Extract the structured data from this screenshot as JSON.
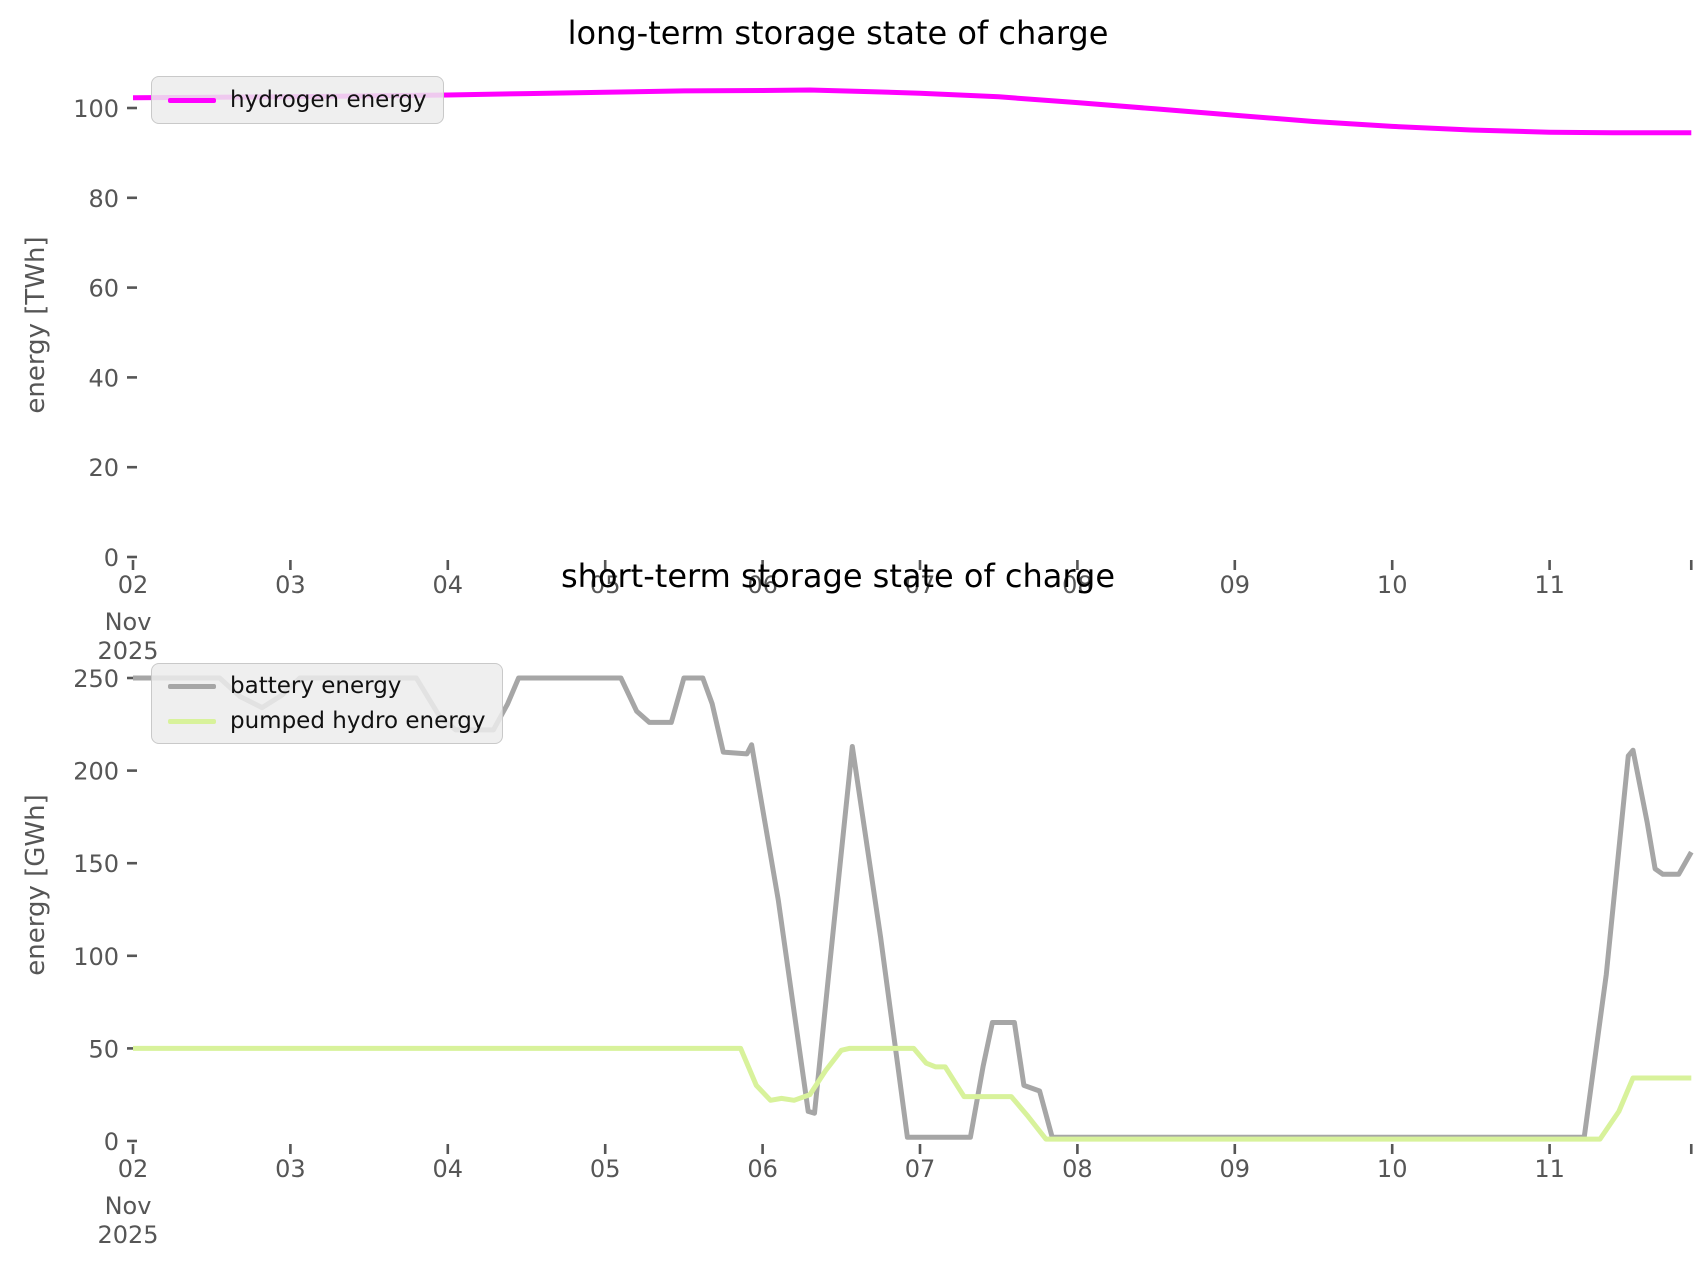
{
  "figure": {
    "background": "#ffffff",
    "text_color": "#565656",
    "title_color": "#000000"
  },
  "chart_data": [
    {
      "type": "line",
      "title": "long-term storage state of charge",
      "xlabel": "",
      "ylabel": "energy [TWh]",
      "x_tick_labels": [
        "02",
        "03",
        "04",
        "05",
        "06",
        "07",
        "08",
        "09",
        "10",
        "11"
      ],
      "x_first_tick_sublabels": [
        "Nov",
        "2025"
      ],
      "y_ticks": [
        0,
        20,
        40,
        60,
        80,
        100
      ],
      "ylim": [
        0,
        112
      ],
      "xlim_days": [
        0,
        9.9
      ],
      "grid": false,
      "legend_position": "upper left",
      "series": [
        {
          "name": "hydrogen energy",
          "color": "#ff00ff",
          "points": [
            [
              0,
              102.3
            ],
            [
              0.5,
              102.4
            ],
            [
              1,
              102.5
            ],
            [
              1.5,
              102.7
            ],
            [
              2,
              102.9
            ],
            [
              2.5,
              103.2
            ],
            [
              3,
              103.5
            ],
            [
              3.5,
              103.8
            ],
            [
              4,
              103.9
            ],
            [
              4.3,
              104.0
            ],
            [
              4.7,
              103.6
            ],
            [
              5,
              103.3
            ],
            [
              5.5,
              102.5
            ],
            [
              6,
              101.2
            ],
            [
              6.5,
              99.8
            ],
            [
              7,
              98.4
            ],
            [
              7.5,
              97.0
            ],
            [
              8,
              95.9
            ],
            [
              8.5,
              95.1
            ],
            [
              9,
              94.6
            ],
            [
              9.4,
              94.5
            ],
            [
              9.9,
              94.5
            ]
          ]
        }
      ]
    },
    {
      "type": "line",
      "title": "short-term storage state of charge",
      "xlabel": "",
      "ylabel": "energy [GWh]",
      "x_tick_labels": [
        "02",
        "03",
        "04",
        "05",
        "06",
        "07",
        "08",
        "09",
        "10",
        "11"
      ],
      "x_first_tick_sublabels": [
        "Nov",
        "2025"
      ],
      "y_ticks": [
        0,
        50,
        100,
        150,
        200,
        250
      ],
      "ylim": [
        0,
        270
      ],
      "xlim_days": [
        0,
        9.9
      ],
      "grid": false,
      "legend_position": "upper left",
      "series": [
        {
          "name": "battery energy",
          "color": "#a6a6a6",
          "points": [
            [
              0,
              250
            ],
            [
              0.55,
              250
            ],
            [
              0.68,
              240
            ],
            [
              0.82,
              234
            ],
            [
              0.95,
              241
            ],
            [
              1.06,
              250
            ],
            [
              1.8,
              250
            ],
            [
              1.95,
              229
            ],
            [
              2.05,
              222
            ],
            [
              2.29,
              222
            ],
            [
              2.38,
              236
            ],
            [
              2.45,
              250
            ],
            [
              3.1,
              250
            ],
            [
              3.2,
              232
            ],
            [
              3.28,
              226
            ],
            [
              3.42,
              226
            ],
            [
              3.5,
              250
            ],
            [
              3.62,
              250
            ],
            [
              3.68,
              236
            ],
            [
              3.75,
              210
            ],
            [
              3.9,
              209
            ],
            [
              3.93,
              214
            ],
            [
              4.1,
              130
            ],
            [
              4.29,
              16
            ],
            [
              4.33,
              15
            ],
            [
              4.42,
              90
            ],
            [
              4.57,
              213
            ],
            [
              4.75,
              110
            ],
            [
              4.92,
              2
            ],
            [
              5.32,
              2
            ],
            [
              5.4,
              40
            ],
            [
              5.46,
              64
            ],
            [
              5.6,
              64
            ],
            [
              5.66,
              30
            ],
            [
              5.76,
              27
            ],
            [
              5.84,
              2
            ],
            [
              9.22,
              2
            ],
            [
              9.36,
              90
            ],
            [
              9.5,
              208
            ],
            [
              9.53,
              211
            ],
            [
              9.62,
              172
            ],
            [
              9.67,
              147
            ],
            [
              9.72,
              144
            ],
            [
              9.82,
              144
            ],
            [
              9.9,
              156
            ]
          ]
        },
        {
          "name": "pumped hydro energy",
          "color": "#d8f29b",
          "points": [
            [
              0,
              50
            ],
            [
              3.86,
              50
            ],
            [
              3.96,
              30
            ],
            [
              4.05,
              22
            ],
            [
              4.12,
              23
            ],
            [
              4.2,
              22
            ],
            [
              4.3,
              25
            ],
            [
              4.4,
              38
            ],
            [
              4.5,
              49
            ],
            [
              4.55,
              50
            ],
            [
              4.96,
              50
            ],
            [
              5.04,
              42
            ],
            [
              5.1,
              40
            ],
            [
              5.16,
              40
            ],
            [
              5.22,
              32
            ],
            [
              5.28,
              24
            ],
            [
              5.58,
              24
            ],
            [
              5.68,
              14
            ],
            [
              5.8,
              1
            ],
            [
              9.32,
              1
            ],
            [
              9.44,
              16
            ],
            [
              9.53,
              34
            ],
            [
              9.9,
              34
            ]
          ]
        }
      ]
    }
  ]
}
